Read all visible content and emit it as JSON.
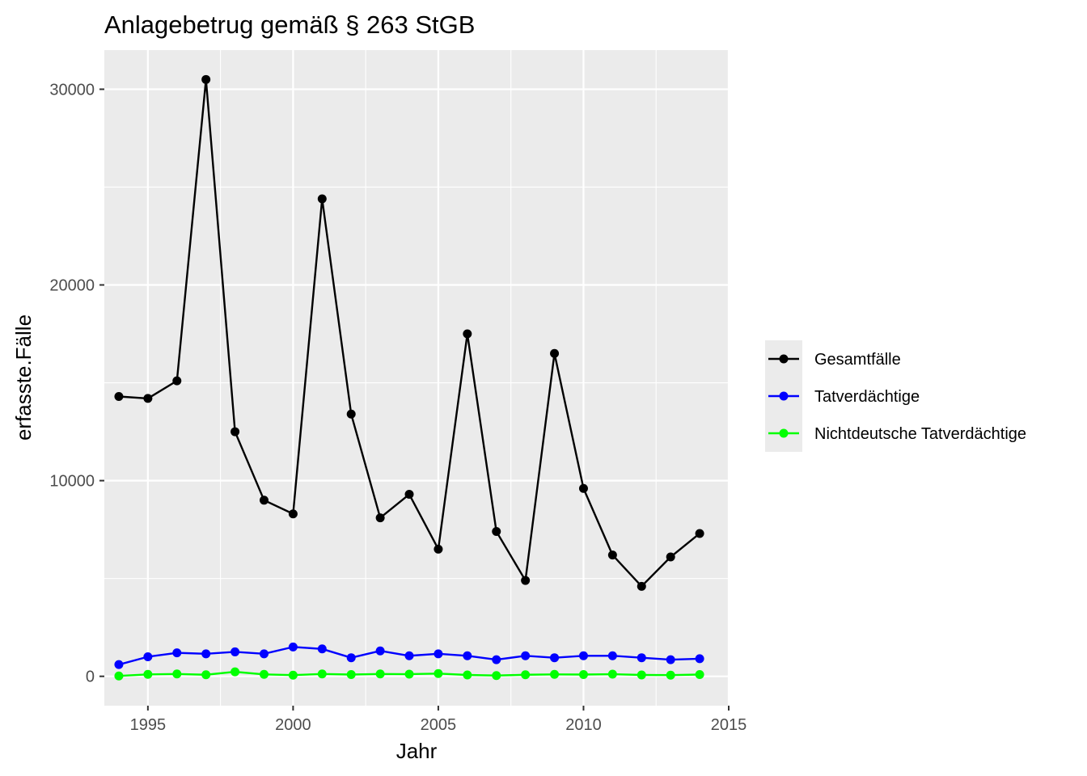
{
  "chart_data": {
    "type": "line",
    "title": "Anlagebetrug gemäß § 263 StGB",
    "xlabel": "Jahr",
    "ylabel": "erfasste.Fälle",
    "xlim": [
      1993.5,
      2015
    ],
    "ylim": [
      -1500,
      32000
    ],
    "x_ticks": [
      1995,
      2000,
      2005,
      2010,
      2015
    ],
    "y_ticks": [
      0,
      10000,
      20000,
      30000
    ],
    "x_tick_labels": [
      "1995",
      "2000",
      "2005",
      "2010",
      "2015"
    ],
    "y_tick_labels": [
      "0",
      "10000",
      "20000",
      "30000"
    ],
    "grid": true,
    "legend_position": "right",
    "x": [
      1994,
      1995,
      1996,
      1997,
      1998,
      1999,
      2000,
      2001,
      2002,
      2003,
      2004,
      2005,
      2006,
      2007,
      2008,
      2009,
      2010,
      2011,
      2012,
      2013,
      2014
    ],
    "series": [
      {
        "name": "Gesamtfälle",
        "color": "#000000",
        "values": [
          14300,
          14200,
          15100,
          30500,
          12500,
          9000,
          8300,
          24400,
          13400,
          8100,
          9300,
          6500,
          17500,
          7400,
          4900,
          16500,
          9600,
          6200,
          4600,
          6100,
          7300
        ]
      },
      {
        "name": "Tatverdächtige",
        "color": "#0000ff",
        "values": [
          600,
          1000,
          1200,
          1150,
          1250,
          1150,
          1500,
          1400,
          950,
          1300,
          1050,
          1150,
          1050,
          850,
          1050,
          950,
          1050,
          1050,
          950,
          850,
          900
        ]
      },
      {
        "name": "Nichtdeutsche Tatverdächtige",
        "color": "#00ff00",
        "values": [
          20,
          100,
          120,
          80,
          230,
          100,
          60,
          120,
          90,
          120,
          110,
          140,
          70,
          40,
          80,
          100,
          90,
          110,
          70,
          60,
          90
        ]
      }
    ]
  }
}
